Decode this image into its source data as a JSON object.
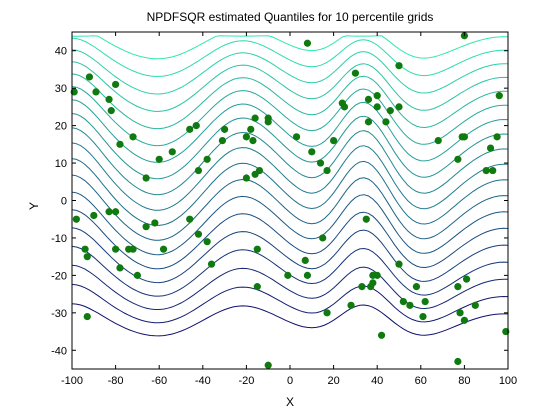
{
  "chart_data": {
    "type": "scatter",
    "title": "NPDFSQR estimated Quantiles for 10 percentile grids",
    "xlabel": "X",
    "ylabel": "Y",
    "xlim": [
      -100,
      100
    ],
    "ylim": [
      -45,
      45
    ],
    "xticks": [
      -100,
      -80,
      -60,
      -40,
      -20,
      0,
      20,
      40,
      60,
      80,
      100
    ],
    "yticks": [
      -40,
      -30,
      -20,
      -10,
      0,
      10,
      20,
      30,
      40
    ],
    "grid": false,
    "colors": {
      "point": "#107a10",
      "contour_low": "#10106e",
      "contour_high": "#30e8b0"
    },
    "points": [
      [
        -99,
        29
      ],
      [
        -92,
        33
      ],
      [
        -89,
        29
      ],
      [
        -83,
        27
      ],
      [
        -80,
        31
      ],
      [
        -82,
        24
      ],
      [
        -78,
        15
      ],
      [
        -72,
        17
      ],
      [
        -66,
        6
      ],
      [
        -60,
        11
      ],
      [
        -54,
        13
      ],
      [
        -46,
        19
      ],
      [
        -43,
        20
      ],
      [
        -38,
        11
      ],
      [
        -42,
        8
      ],
      [
        -30,
        19
      ],
      [
        -31,
        16
      ],
      [
        -20,
        17
      ],
      [
        -16,
        22
      ],
      [
        -18,
        19
      ],
      [
        -17,
        16
      ],
      [
        -14,
        8
      ],
      [
        -16,
        7
      ],
      [
        -20,
        6
      ],
      [
        -10,
        21
      ],
      [
        3,
        17
      ],
      [
        -10,
        22
      ],
      [
        -98,
        -5
      ],
      [
        -94,
        -13
      ],
      [
        -93,
        -15
      ],
      [
        -90,
        -4
      ],
      [
        -83,
        -3
      ],
      [
        -80,
        -3
      ],
      [
        -80,
        -13
      ],
      [
        -78,
        -18
      ],
      [
        -74,
        -13
      ],
      [
        -72,
        -13
      ],
      [
        -70,
        -20
      ],
      [
        -66,
        -7
      ],
      [
        -62,
        -6
      ],
      [
        -58,
        -13
      ],
      [
        -46,
        -5
      ],
      [
        -42,
        -9
      ],
      [
        -38,
        -11
      ],
      [
        -36,
        -17
      ],
      [
        -15,
        -13
      ],
      [
        -15,
        -23
      ],
      [
        -1,
        -20
      ],
      [
        8,
        -20
      ],
      [
        7,
        -16
      ],
      [
        15,
        -10
      ],
      [
        17,
        -30
      ],
      [
        -93,
        -31
      ],
      [
        -10,
        -44
      ],
      [
        8,
        42
      ],
      [
        30,
        34
      ],
      [
        36,
        27
      ],
      [
        40,
        28
      ],
      [
        40,
        25
      ],
      [
        44,
        21
      ],
      [
        46,
        24
      ],
      [
        50,
        25
      ],
      [
        36,
        21
      ],
      [
        24,
        26
      ],
      [
        20,
        16
      ],
      [
        25,
        25
      ],
      [
        10,
        13
      ],
      [
        14,
        10
      ],
      [
        17,
        8
      ],
      [
        35,
        -5
      ],
      [
        38,
        -20
      ],
      [
        40,
        -20
      ],
      [
        38,
        -22
      ],
      [
        37,
        -23
      ],
      [
        33,
        -23
      ],
      [
        28,
        -28
      ],
      [
        50,
        -17
      ],
      [
        52,
        -27
      ],
      [
        55,
        -28
      ],
      [
        58,
        -23
      ],
      [
        61,
        -31
      ],
      [
        42,
        -36
      ],
      [
        62,
        -27
      ],
      [
        77,
        -23
      ],
      [
        78,
        -30
      ],
      [
        80,
        -32
      ],
      [
        81,
        -21
      ],
      [
        85,
        -28
      ],
      [
        77,
        -43
      ],
      [
        90,
        8
      ],
      [
        93,
        8
      ],
      [
        95,
        17
      ],
      [
        96,
        28
      ],
      [
        92,
        14
      ],
      [
        80,
        17
      ],
      [
        79,
        17
      ],
      [
        68,
        16
      ],
      [
        77,
        11
      ],
      [
        80,
        44
      ],
      [
        50,
        36
      ],
      [
        99,
        -35
      ]
    ]
  }
}
